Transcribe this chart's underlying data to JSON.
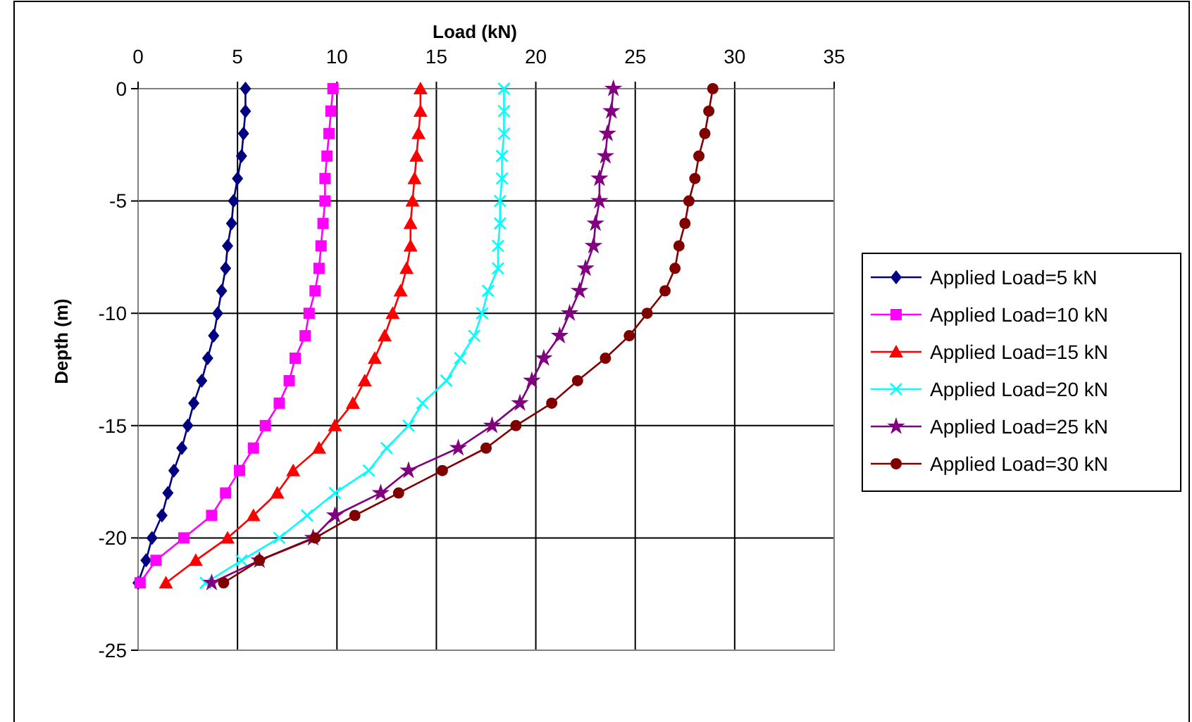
{
  "chart_data": {
    "type": "line",
    "xlabel": "Load (kN)",
    "ylabel": "Depth (m)",
    "xlim": [
      0,
      35
    ],
    "xticks": [
      0,
      5,
      10,
      15,
      20,
      25,
      30,
      35
    ],
    "ylim": [
      -25,
      0
    ],
    "yticks": [
      0,
      -5,
      -10,
      -15,
      -20,
      -25
    ],
    "grid": true,
    "legend": "right",
    "series": [
      {
        "name": "Applied Load=5 kN",
        "color": "#000080",
        "marker": "diamond",
        "x": [
          5.4,
          5.4,
          5.3,
          5.2,
          5.0,
          4.8,
          4.7,
          4.5,
          4.4,
          4.2,
          4.0,
          3.8,
          3.5,
          3.2,
          2.8,
          2.5,
          2.2,
          1.8,
          1.5,
          1.2,
          0.7,
          0.4,
          0.0
        ],
        "values": [
          0,
          -1,
          -2,
          -3,
          -4,
          -5,
          -6,
          -7,
          -8,
          -9,
          -10,
          -11,
          -12,
          -13,
          -14,
          -15,
          -16,
          -17,
          -18,
          -19,
          -20,
          -21,
          -22
        ]
      },
      {
        "name": "Applied Load=10 kN",
        "color": "#ff00ff",
        "marker": "square",
        "x": [
          9.8,
          9.7,
          9.6,
          9.5,
          9.4,
          9.4,
          9.3,
          9.2,
          9.1,
          8.9,
          8.6,
          8.4,
          7.9,
          7.6,
          7.1,
          6.4,
          5.8,
          5.1,
          4.4,
          3.7,
          2.3,
          0.9,
          0.1
        ],
        "values": [
          0,
          -1,
          -2,
          -3,
          -4,
          -5,
          -6,
          -7,
          -8,
          -9,
          -10,
          -11,
          -12,
          -13,
          -14,
          -15,
          -16,
          -17,
          -18,
          -19,
          -20,
          -21,
          -22
        ]
      },
      {
        "name": "Applied Load=15 kN",
        "color": "#ff0000",
        "marker": "triangle",
        "x": [
          14.2,
          14.2,
          14.1,
          14.0,
          13.9,
          13.8,
          13.7,
          13.7,
          13.5,
          13.2,
          12.8,
          12.4,
          11.9,
          11.4,
          10.8,
          9.9,
          9.1,
          7.8,
          7.0,
          5.8,
          4.5,
          2.9,
          1.4
        ],
        "values": [
          0,
          -1,
          -2,
          -3,
          -4,
          -5,
          -6,
          -7,
          -8,
          -9,
          -10,
          -11,
          -12,
          -13,
          -14,
          -15,
          -16,
          -17,
          -18,
          -19,
          -20,
          -21,
          -22
        ]
      },
      {
        "name": "Applied Load=20 kN",
        "color": "#00ffff",
        "marker": "cross",
        "x": [
          18.4,
          18.4,
          18.4,
          18.3,
          18.3,
          18.2,
          18.2,
          18.1,
          18.1,
          17.6,
          17.3,
          16.9,
          16.2,
          15.5,
          14.3,
          13.6,
          12.5,
          11.6,
          9.9,
          8.5,
          7.1,
          5.2,
          3.4
        ],
        "values": [
          0,
          -1,
          -2,
          -3,
          -4,
          -5,
          -6,
          -7,
          -8,
          -9,
          -10,
          -11,
          -12,
          -13,
          -14,
          -15,
          -16,
          -17,
          -18,
          -19,
          -20,
          -21,
          -22
        ]
      },
      {
        "name": "Applied Load=25 kN",
        "color": "#800080",
        "marker": "star",
        "x": [
          23.9,
          23.8,
          23.6,
          23.5,
          23.2,
          23.2,
          23.0,
          22.9,
          22.5,
          22.2,
          21.7,
          21.2,
          20.4,
          19.8,
          19.2,
          17.8,
          16.1,
          13.6,
          12.2,
          9.9,
          8.8,
          6.1,
          3.7
        ],
        "values": [
          0,
          -1,
          -2,
          -3,
          -4,
          -5,
          -6,
          -7,
          -8,
          -9,
          -10,
          -11,
          -12,
          -13,
          -14,
          -15,
          -16,
          -17,
          -18,
          -19,
          -20,
          -21,
          -22
        ]
      },
      {
        "name": "Applied Load=30 kN",
        "color": "#800000",
        "marker": "circle",
        "x": [
          28.9,
          28.7,
          28.5,
          28.2,
          28.0,
          27.7,
          27.5,
          27.2,
          27.0,
          26.5,
          25.6,
          24.7,
          23.5,
          22.1,
          20.8,
          19.0,
          17.5,
          15.3,
          13.1,
          10.9,
          8.9,
          6.1,
          4.3
        ],
        "values": [
          0,
          -1,
          -2,
          -3,
          -4,
          -5,
          -6,
          -7,
          -8,
          -9,
          -10,
          -11,
          -12,
          -13,
          -14,
          -15,
          -16,
          -17,
          -18,
          -19,
          -20,
          -21,
          -22
        ]
      }
    ]
  }
}
